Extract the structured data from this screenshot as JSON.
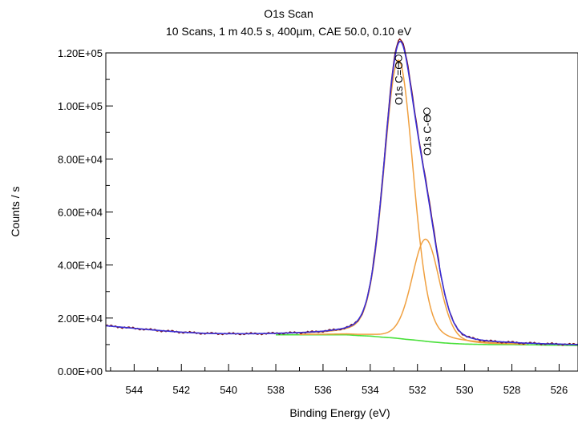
{
  "chart_data": {
    "type": "line",
    "title": "O1s Scan",
    "subtitle": "10 Scans,  1 m 40.5 s,  400µm,  CAE 50.0,  0.10 eV",
    "xlabel": "Binding Energy (eV)",
    "ylabel": "Counts / s",
    "xlim": [
      545.2,
      525.2
    ],
    "x_reversed": true,
    "ylim": [
      0,
      120000
    ],
    "x_ticks": [
      544,
      542,
      540,
      538,
      536,
      534,
      532,
      530,
      528,
      526
    ],
    "y_ticks": [
      0,
      20000,
      40000,
      60000,
      80000,
      100000,
      120000
    ],
    "y_tick_labels": [
      "0.00E+00",
      "2.00E+04",
      "4.00E+04",
      "6.00E+04",
      "8.00E+04",
      "1.00E+05",
      "1.20E+05"
    ],
    "grid": false,
    "peak_labels": [
      {
        "text": "O1s C=O",
        "x": 532.8,
        "y": 118000
      },
      {
        "text": "O1s C-O",
        "x": 531.6,
        "y": 98000
      }
    ],
    "model": {
      "points": [
        545.2,
        544,
        543,
        542,
        541,
        540,
        539,
        538,
        537,
        536,
        535.5,
        535,
        534.5,
        534,
        533.8,
        533.6,
        533.4,
        533.2,
        533.0,
        532.9,
        532.8,
        532.7,
        532.6,
        532.5,
        532.4,
        532.3,
        532.2,
        532.1,
        532.0,
        531.9,
        531.8,
        531.7,
        531.6,
        531.5,
        531.4,
        531.2,
        531.0,
        530.8,
        530.6,
        530.4,
        530.2,
        530.0,
        529.5,
        529.0,
        528.5,
        528.0,
        527.5,
        527.0,
        526.5,
        526.0,
        525.5,
        525.2
      ],
      "background": {
        "x": [
          545.2,
          544,
          543,
          542,
          541,
          540,
          539,
          538,
          537,
          536,
          535,
          534.5,
          534,
          533.5,
          533,
          532.5,
          532,
          531.5,
          531,
          530.5,
          530,
          529.5,
          529,
          528.5,
          528,
          527.5,
          527,
          526.5,
          526,
          525.5,
          525.2
        ],
        "y": [
          17000,
          16000,
          15200,
          14500,
          14000,
          13800,
          13700,
          13700,
          13700,
          13700,
          13700,
          13400,
          13200,
          12800,
          12500,
          12000,
          11600,
          11100,
          10700,
          10400,
          10200,
          10100,
          10000,
          10000,
          10000,
          9900,
          9900,
          9800,
          9800,
          9700,
          9700
        ]
      },
      "components": [
        {
          "name": "O1s C=O",
          "center": 532.8,
          "amplitude": 105000,
          "sigma": 0.62
        },
        {
          "name": "O1s C-O",
          "center": 531.65,
          "amplitude": 38500,
          "sigma": 0.58
        }
      ]
    },
    "colors": {
      "raw": "#7a1010",
      "envelope": "#3a2fd6",
      "components": "#f0a040",
      "background": "#49e03a",
      "axis": "#000000",
      "label_marker": "#000000"
    }
  }
}
